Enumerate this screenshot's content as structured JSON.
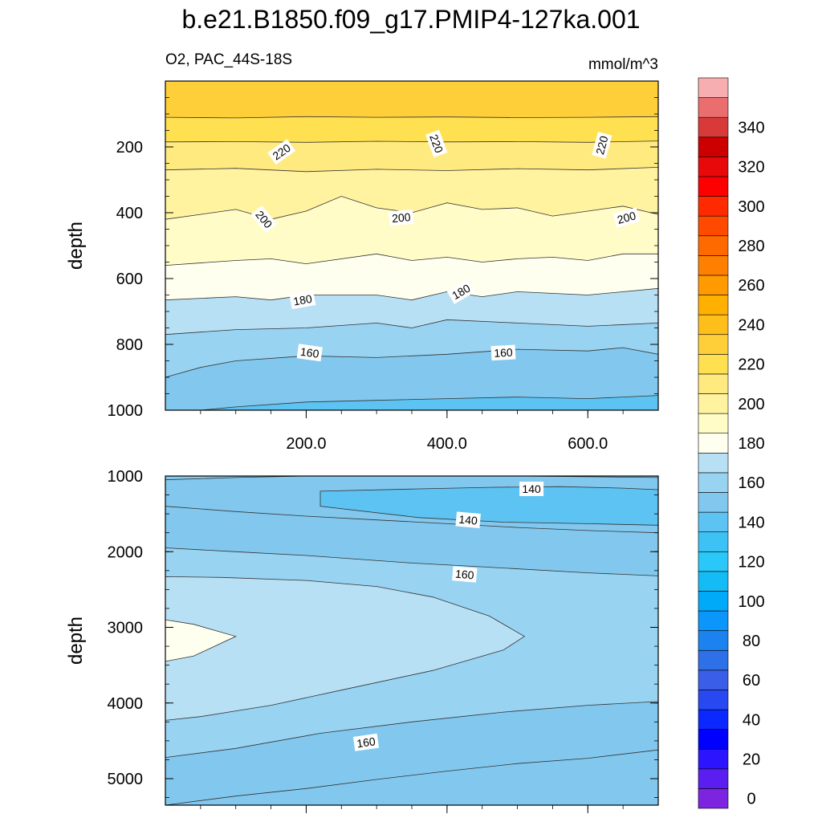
{
  "chart_data": {
    "type": "contour",
    "title": "b.e21.B1850.f09_g17.PMIP4-127ka.001",
    "variable_label": "O2, PAC_44S-18S",
    "units": "mmol/m^3",
    "x_range": [
      0,
      700
    ],
    "x_tick_labels": [
      "200.0",
      "400.0",
      "600.0"
    ],
    "colorbar": {
      "levels": [
        0,
        10,
        20,
        30,
        40,
        50,
        60,
        70,
        80,
        90,
        100,
        110,
        120,
        130,
        140,
        150,
        160,
        170,
        180,
        190,
        200,
        210,
        220,
        230,
        240,
        250,
        260,
        270,
        280,
        290,
        300,
        310,
        320,
        330,
        340,
        350
      ],
      "labels": [
        "0",
        "20",
        "40",
        "60",
        "80",
        "100",
        "120",
        "140",
        "160",
        "180",
        "200",
        "220",
        "240",
        "260",
        "280",
        "300",
        "320",
        "340"
      ],
      "colors": [
        "#7c24e0",
        "#5a1ff0",
        "#2d14ff",
        "#0000ff",
        "#0a28ff",
        "#2848f2",
        "#3a5ee8",
        "#2d70e8",
        "#1b82f0",
        "#0a96fa",
        "#00aaf8",
        "#14bcf5",
        "#2ac8f8",
        "#3cc2f5",
        "#5cc3f2",
        "#82c8ee",
        "#98d3f2",
        "#b8e0f4",
        "#fffff0",
        "#fffcc8",
        "#fff3a0",
        "#ffea80",
        "#ffe050",
        "#ffcf3a",
        "#ffbf1a",
        "#ffb000",
        "#ff9a00",
        "#ff8000",
        "#ff6a00",
        "#ff4a00",
        "#ff2a00",
        "#ff0000",
        "#e80a0a",
        "#cc0000",
        "#d83a3a",
        "#ea6e6e",
        "#f7aeb0"
      ]
    },
    "panels": [
      {
        "name": "upper",
        "xlabel": "",
        "ylabel": "depth",
        "ylim": [
          0,
          1000
        ],
        "y_tick_labels": [
          "200",
          "400",
          "600",
          "800",
          "1000"
        ],
        "band_boundaries": [
          {
            "x": [
              0,
              100,
              200,
              300,
              400,
              500,
              600,
              700
            ],
            "y": [
              110,
              112,
              108,
              110,
              109,
              111,
              110,
              108
            ]
          },
          {
            "x": [
              0,
              100,
              200,
              300,
              400,
              500,
              600,
              700
            ],
            "y": [
              185,
              184,
              186,
              183,
              185,
              184,
              186,
              182
            ]
          },
          {
            "x": [
              0,
              100,
              200,
              300,
              400,
              500,
              600,
              700
            ],
            "y": [
              270,
              265,
              275,
              268,
              272,
              266,
              270,
              262
            ]
          },
          {
            "x": [
              0,
              50,
              100,
              150,
              200,
              250,
              300,
              350,
              400,
              450,
              500,
              550,
              600,
              650,
              700
            ],
            "y": [
              420,
              405,
              390,
              420,
              395,
              350,
              385,
              400,
              370,
              390,
              385,
              410,
              395,
              380,
              405
            ]
          },
          {
            "x": [
              0,
              100,
              150,
              200,
              300,
              350,
              400,
              450,
              500,
              550,
              600,
              650,
              700
            ],
            "y": [
              560,
              545,
              540,
              555,
              525,
              545,
              535,
              550,
              540,
              535,
              545,
              525,
              525
            ]
          },
          {
            "x": [
              0,
              100,
              150,
              200,
              300,
              350,
              400,
              450,
              500,
              600,
              700
            ],
            "y": [
              665,
              655,
              665,
              650,
              650,
              665,
              640,
              655,
              640,
              650,
              630
            ]
          },
          {
            "x": [
              0,
              100,
              200,
              300,
              350,
              400,
              500,
              600,
              700
            ],
            "y": [
              770,
              755,
              750,
              735,
              750,
              725,
              735,
              745,
              735
            ]
          },
          {
            "x": [
              0,
              50,
              100,
              200,
              300,
              400,
              500,
              600,
              650,
              700
            ],
            "y": [
              900,
              870,
              850,
              835,
              840,
              830,
              815,
              820,
              810,
              830
            ]
          },
          {
            "x": [
              0,
              100,
              200,
              300,
              400,
              500,
              600,
              700
            ],
            "y": [
              1010,
              990,
              975,
              970,
              965,
              960,
              965,
              955
            ]
          }
        ],
        "band_levels": [
          230,
          220,
          210,
          200,
          190,
          180,
          170,
          160,
          150,
          140
        ],
        "contour_labels": [
          {
            "text": "220",
            "x": 165,
            "y": 215,
            "angle": -35
          },
          {
            "text": "220",
            "x": 385,
            "y": 190,
            "angle": 70
          },
          {
            "text": "220",
            "x": 620,
            "y": 195,
            "angle": -75
          },
          {
            "text": "200",
            "x": 140,
            "y": 420,
            "angle": 50
          },
          {
            "text": "200",
            "x": 335,
            "y": 415,
            "angle": -5
          },
          {
            "text": "200",
            "x": 655,
            "y": 415,
            "angle": -15
          },
          {
            "text": "180",
            "x": 195,
            "y": 665,
            "angle": -10
          },
          {
            "text": "180",
            "x": 420,
            "y": 640,
            "angle": -30
          },
          {
            "text": "160",
            "x": 205,
            "y": 825,
            "angle": 8
          },
          {
            "text": "160",
            "x": 480,
            "y": 825,
            "angle": -3
          }
        ]
      },
      {
        "name": "lower",
        "xlabel": "",
        "ylabel": "depth",
        "ylim": [
          1000,
          5350
        ],
        "y_tick_labels": [
          "1000",
          "2000",
          "3000",
          "4000",
          "5000"
        ],
        "background_level": 150,
        "regions": [
          {
            "level": 140,
            "polygon": [
              [
                220,
                1200
              ],
              [
                360,
                1170
              ],
              [
                460,
                1150
              ],
              [
                560,
                1140
              ],
              [
                650,
                1160
              ],
              [
                700,
                1180
              ],
              [
                700,
                1650
              ],
              [
                600,
                1630
              ],
              [
                480,
                1610
              ],
              [
                360,
                1550
              ],
              [
                220,
                1400
              ]
            ]
          },
          {
            "level": 160,
            "polygon": [
              [
                0,
                1950
              ],
              [
                100,
                2000
              ],
              [
                200,
                2050
              ],
              [
                350,
                2150
              ],
              [
                450,
                2200
              ],
              [
                600,
                2280
              ],
              [
                700,
                2320
              ],
              [
                700,
                3980
              ],
              [
                600,
                4030
              ],
              [
                480,
                4120
              ],
              [
                350,
                4250
              ],
              [
                220,
                4400
              ],
              [
                100,
                4600
              ],
              [
                0,
                4720
              ]
            ]
          },
          {
            "level": 170,
            "polygon": [
              [
                0,
                2330
              ],
              [
                80,
                2340
              ],
              [
                200,
                2380
              ],
              [
                300,
                2460
              ],
              [
                380,
                2600
              ],
              [
                460,
                2850
              ],
              [
                510,
                3120
              ],
              [
                480,
                3300
              ],
              [
                380,
                3570
              ],
              [
                250,
                3830
              ],
              [
                150,
                4030
              ],
              [
                50,
                4180
              ],
              [
                0,
                4230
              ]
            ]
          },
          {
            "level": 180,
            "polygon": [
              [
                0,
                2900
              ],
              [
                40,
                2960
              ],
              [
                100,
                3120
              ],
              [
                40,
                3380
              ],
              [
                0,
                3450
              ]
            ]
          }
        ],
        "extra_contours": [
          {
            "x": [
              0,
              100,
              200,
              300,
              400,
              500,
              600,
              700
            ],
            "y": [
              1050,
              1020,
              1000,
              1000,
              1000,
              1000,
              1010,
              1020
            ]
          },
          {
            "x": [
              0,
              100,
              200,
              300,
              400,
              500,
              600,
              700
            ],
            "y": [
              1400,
              1470,
              1530,
              1580,
              1630,
              1680,
              1720,
              1750
            ]
          },
          {
            "x": [
              0,
              100,
              200,
              300,
              400,
              500,
              600,
              700
            ],
            "y": [
              5350,
              5230,
              5130,
              5010,
              4900,
              4800,
              4730,
              4620
            ]
          }
        ],
        "contour_labels": [
          {
            "text": "140",
            "x": 520,
            "y": 1170,
            "angle": 0
          },
          {
            "text": "140",
            "x": 430,
            "y": 1580,
            "angle": 5
          },
          {
            "text": "160",
            "x": 425,
            "y": 2300,
            "angle": 5
          },
          {
            "text": "160",
            "x": 285,
            "y": 4520,
            "angle": -8
          }
        ]
      }
    ]
  }
}
